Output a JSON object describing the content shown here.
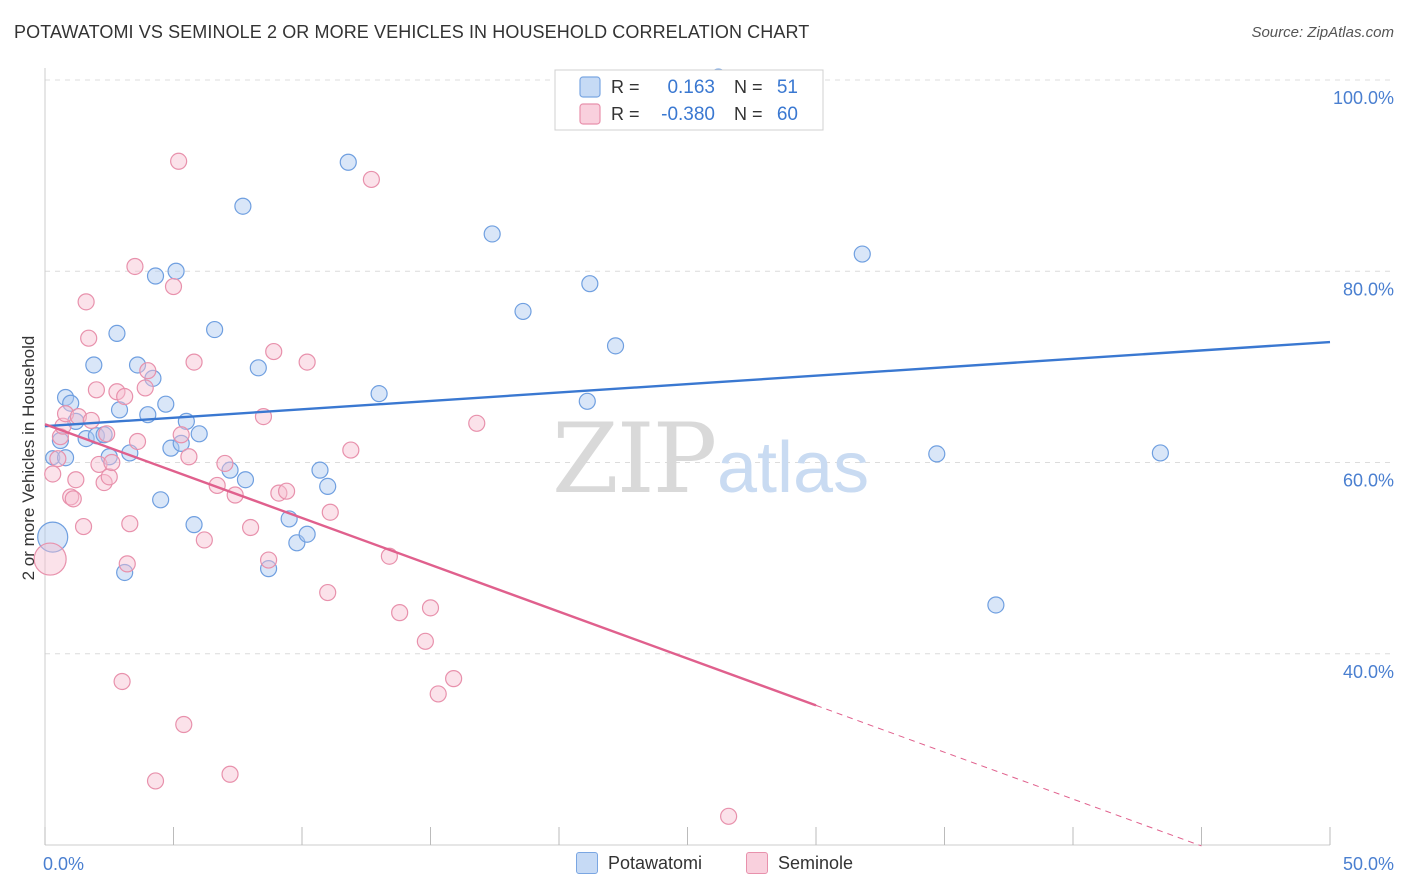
{
  "title": "POTAWATOMI VS SEMINOLE 2 OR MORE VEHICLES IN HOUSEHOLD CORRELATION CHART",
  "source": "Source: ZipAtlas.com",
  "watermark": {
    "zip": "ZIP",
    "atlas": "atlas"
  },
  "colors": {
    "blue": "#6f9fe0",
    "blue_fill": "#aac8f0",
    "blue_line": "#3a78d1",
    "pink": "#e891ac",
    "pink_fill": "#f6bed0",
    "pink_line": "#e0608d",
    "tick_label": "#4a7fd0",
    "grid": "#dcdcdc"
  },
  "legend_top": {
    "rows": [
      {
        "r_label": "R =",
        "r_value": "0.163",
        "n_label": "N =",
        "n_value": "51",
        "series": "blue"
      },
      {
        "r_label": "R =",
        "r_value": "-0.380",
        "n_label": "N = ",
        "n_value": "60",
        "series": "pink"
      }
    ]
  },
  "chart_data": {
    "type": "scatter",
    "ylabel": "2 or more Vehicles in Household",
    "xlim": [
      0,
      50
    ],
    "ylim": [
      20,
      100
    ],
    "x_tick_labels": {
      "left": "0.0%",
      "right": "50.0%"
    },
    "y_ticks": [
      {
        "value": 100,
        "label": "100.0%"
      },
      {
        "value": 80,
        "label": "80.0%"
      },
      {
        "value": 60,
        "label": "60.0%"
      },
      {
        "value": 40,
        "label": "40.0%"
      }
    ],
    "grid": true,
    "legend_position": "bottom",
    "series": [
      {
        "name": "Potawatomi",
        "color": "blue",
        "trend": {
          "x0": 0,
          "y0": 63.8,
          "x1": 50,
          "y1": 72.6
        },
        "points": [
          [
            0.3,
            52.2,
            15
          ],
          [
            0.3,
            60.5,
            7
          ],
          [
            0.6,
            62.3,
            8
          ],
          [
            0.8,
            66.8,
            8
          ],
          [
            0.8,
            60.5,
            8
          ],
          [
            1.0,
            66.2,
            8
          ],
          [
            1.2,
            64.3,
            8
          ],
          [
            1.6,
            62.5,
            8
          ],
          [
            1.9,
            70.2,
            8
          ],
          [
            2.0,
            62.8,
            8
          ],
          [
            2.3,
            62.9,
            8
          ],
          [
            2.5,
            60.6,
            8
          ],
          [
            2.8,
            73.5,
            8
          ],
          [
            2.9,
            65.5,
            8
          ],
          [
            3.1,
            48.5,
            8
          ],
          [
            3.3,
            61.0,
            8
          ],
          [
            3.6,
            70.2,
            8
          ],
          [
            4.0,
            65.0,
            8
          ],
          [
            4.2,
            68.8,
            8
          ],
          [
            4.3,
            79.5,
            8
          ],
          [
            4.5,
            56.1,
            8
          ],
          [
            4.7,
            66.1,
            8
          ],
          [
            4.9,
            61.5,
            8
          ],
          [
            5.1,
            80.0,
            8
          ],
          [
            5.3,
            62.0,
            8
          ],
          [
            5.5,
            64.3,
            8
          ],
          [
            5.8,
            53.5,
            8
          ],
          [
            6.0,
            63.0,
            8
          ],
          [
            6.6,
            73.9,
            8
          ],
          [
            7.2,
            59.2,
            8
          ],
          [
            7.7,
            86.8,
            8
          ],
          [
            7.8,
            58.2,
            8
          ],
          [
            8.3,
            69.9,
            8
          ],
          [
            8.7,
            48.9,
            8
          ],
          [
            9.5,
            54.1,
            8
          ],
          [
            9.8,
            51.6,
            8
          ],
          [
            10.2,
            52.5,
            8
          ],
          [
            10.7,
            59.2,
            8
          ],
          [
            11.0,
            57.5,
            8
          ],
          [
            11.8,
            91.4,
            8
          ],
          [
            13.0,
            67.2,
            8
          ],
          [
            17.4,
            83.9,
            8
          ],
          [
            18.6,
            75.8,
            8
          ],
          [
            21.1,
            66.4,
            8
          ],
          [
            21.2,
            78.7,
            8
          ],
          [
            22.2,
            72.2,
            8
          ],
          [
            26.2,
            100.3,
            8
          ],
          [
            31.8,
            81.8,
            8
          ],
          [
            34.7,
            60.9,
            8
          ],
          [
            37.0,
            45.1,
            8
          ],
          [
            43.4,
            61.0,
            8
          ]
        ]
      },
      {
        "name": "Seminole",
        "color": "pink",
        "trend": {
          "x0": 0,
          "y0": 64.0,
          "x1": 30.0,
          "y1": 34.6
        },
        "trend_dashed": {
          "x0": 30.0,
          "y0": 34.6,
          "x1": 45.0,
          "y1": 19.9
        },
        "points": [
          [
            0.2,
            49.9,
            16
          ],
          [
            0.3,
            58.8,
            8
          ],
          [
            0.5,
            60.4,
            8
          ],
          [
            0.6,
            62.7,
            8
          ],
          [
            0.7,
            63.8,
            8
          ],
          [
            0.8,
            65.1,
            8
          ],
          [
            1.0,
            56.4,
            8
          ],
          [
            1.1,
            56.2,
            8
          ],
          [
            1.2,
            58.2,
            8
          ],
          [
            1.3,
            64.8,
            8
          ],
          [
            1.5,
            53.3,
            8
          ],
          [
            1.6,
            76.8,
            8
          ],
          [
            1.7,
            73.0,
            8
          ],
          [
            1.8,
            64.4,
            8
          ],
          [
            2.0,
            67.6,
            8
          ],
          [
            2.1,
            59.8,
            8
          ],
          [
            2.3,
            57.9,
            8
          ],
          [
            2.4,
            63.0,
            8
          ],
          [
            2.5,
            58.5,
            8
          ],
          [
            2.6,
            60.0,
            8
          ],
          [
            2.8,
            67.4,
            8
          ],
          [
            3.0,
            37.1,
            8
          ],
          [
            3.1,
            66.9,
            8
          ],
          [
            3.2,
            49.4,
            8
          ],
          [
            3.3,
            53.6,
            8
          ],
          [
            3.5,
            80.5,
            8
          ],
          [
            3.6,
            62.2,
            8
          ],
          [
            3.9,
            67.8,
            8
          ],
          [
            4.0,
            69.6,
            8
          ],
          [
            4.3,
            26.7,
            8
          ],
          [
            5.0,
            78.4,
            8
          ],
          [
            5.2,
            91.5,
            8
          ],
          [
            5.3,
            62.9,
            8
          ],
          [
            5.4,
            32.6,
            8
          ],
          [
            5.6,
            60.6,
            8
          ],
          [
            5.8,
            70.5,
            8
          ],
          [
            6.2,
            51.9,
            8
          ],
          [
            6.7,
            57.6,
            8
          ],
          [
            7.0,
            59.9,
            8
          ],
          [
            7.2,
            27.4,
            8
          ],
          [
            7.4,
            56.6,
            8
          ],
          [
            8.0,
            53.2,
            8
          ],
          [
            8.5,
            64.8,
            8
          ],
          [
            8.7,
            49.8,
            8
          ],
          [
            8.9,
            71.6,
            8
          ],
          [
            9.1,
            56.8,
            8
          ],
          [
            9.4,
            57.0,
            8
          ],
          [
            10.2,
            70.5,
            8
          ],
          [
            11.1,
            54.8,
            8
          ],
          [
            11.0,
            46.4,
            8
          ],
          [
            11.9,
            61.3,
            8
          ],
          [
            12.7,
            89.6,
            8
          ],
          [
            13.4,
            50.2,
            8
          ],
          [
            13.8,
            44.3,
            8
          ],
          [
            14.8,
            41.3,
            8
          ],
          [
            15.0,
            44.8,
            8
          ],
          [
            15.3,
            35.8,
            8
          ],
          [
            15.9,
            37.4,
            8
          ],
          [
            16.8,
            64.1,
            8
          ],
          [
            26.6,
            23.0,
            8
          ]
        ]
      }
    ]
  }
}
